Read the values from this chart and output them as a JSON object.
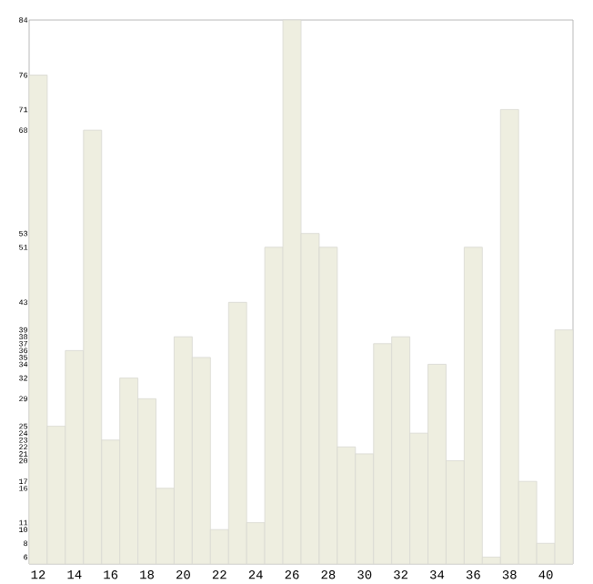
{
  "chart_data": {
    "type": "bar",
    "x": [
      12,
      13,
      14,
      15,
      16,
      17,
      18,
      19,
      20,
      21,
      22,
      23,
      24,
      25,
      26,
      27,
      28,
      29,
      30,
      31,
      32,
      33,
      34,
      35,
      36,
      37,
      38,
      39,
      40,
      41
    ],
    "values": [
      76,
      25,
      36,
      68,
      23,
      32,
      29,
      16,
      38,
      35,
      10,
      43,
      11,
      51,
      84,
      53,
      51,
      22,
      21,
      37,
      38,
      24,
      34,
      20,
      51,
      6,
      71,
      17,
      8,
      39
    ],
    "color": "#eeeee0",
    "xlim": [
      11.5,
      41.5
    ],
    "xticks": [
      12,
      14,
      16,
      18,
      20,
      22,
      24,
      26,
      28,
      30,
      32,
      34,
      36,
      38,
      40
    ],
    "ylim": [
      5,
      84
    ],
    "yticks": [
      6,
      8,
      10,
      11,
      16,
      17,
      20,
      21,
      22,
      23,
      24,
      25,
      29,
      32,
      34,
      35,
      36,
      37,
      38,
      39,
      43,
      51,
      53,
      68,
      71,
      76,
      84
    ]
  }
}
